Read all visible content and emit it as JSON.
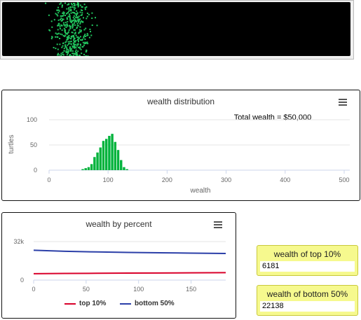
{
  "world_view": {
    "turtle_color": "#22c55e",
    "background": "#000000"
  },
  "histogram": {
    "menu_icon": "hamburger-menu-icon",
    "chart_data": {
      "type": "bar",
      "title": "wealth distribution",
      "annotation": "Total wealth = $50,000",
      "xlabel": "wealth",
      "ylabel": "turtles",
      "xlim": [
        0,
        500
      ],
      "ylim": [
        0,
        100
      ],
      "xticks": [
        "0",
        "100",
        "200",
        "300",
        "400",
        "500"
      ],
      "yticks": [
        "0",
        "50",
        "100"
      ],
      "bar_color": "#00b33c",
      "bin_width": 5,
      "bin_starts": [
        55,
        60,
        65,
        70,
        75,
        80,
        85,
        90,
        95,
        100,
        105,
        110,
        115,
        120,
        125,
        130
      ],
      "values": [
        2,
        4,
        6,
        12,
        26,
        35,
        45,
        58,
        62,
        68,
        72,
        56,
        40,
        20,
        6,
        2
      ]
    }
  },
  "percent_chart": {
    "menu_icon": "hamburger-menu-icon",
    "chart_data": {
      "type": "line",
      "title": "wealth by percent",
      "xlim": [
        0,
        183
      ],
      "ylim": [
        0,
        32000
      ],
      "xticks": [
        "0",
        "50",
        "100",
        "150"
      ],
      "yticks": [
        "0",
        "32k"
      ],
      "series": [
        {
          "name": "top 10%",
          "color": "#d9002a",
          "x": [
            0,
            30,
            60,
            90,
            120,
            150,
            183
          ],
          "values": [
            5300,
            5500,
            5650,
            5800,
            5900,
            6050,
            6181
          ]
        },
        {
          "name": "bottom 50%",
          "color": "#2b3fa8",
          "x": [
            0,
            30,
            60,
            90,
            120,
            150,
            183
          ],
          "values": [
            24800,
            23900,
            23400,
            23000,
            22700,
            22400,
            22138
          ]
        }
      ]
    }
  },
  "monitors": [
    {
      "label": "wealth of top 10%",
      "value": "6181"
    },
    {
      "label": "wealth of bottom 50%",
      "value": "22138"
    }
  ]
}
